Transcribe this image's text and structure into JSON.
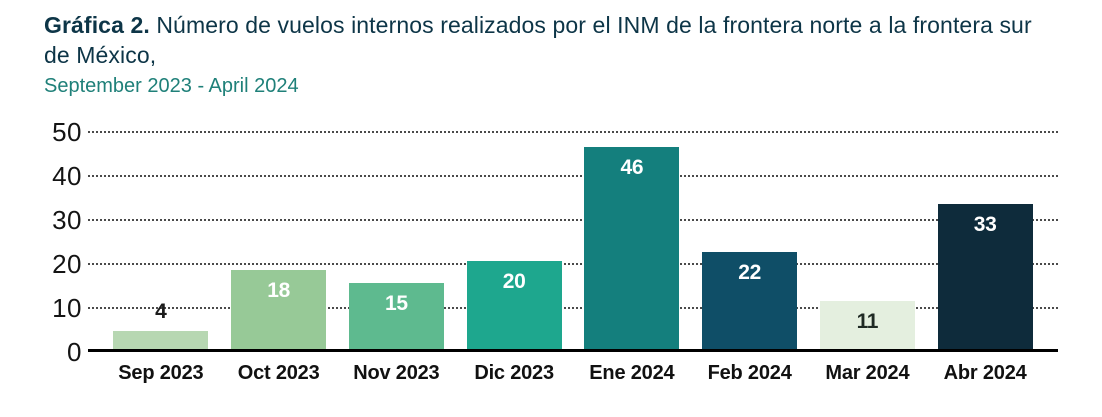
{
  "header": {
    "title_bold": "Gráfica 2.",
    "title_rest": "Número de vuelos internos realizados por el INM de la frontera norte a la frontera sur de México,",
    "subtitle": "September 2023 - April 2024"
  },
  "colors": {
    "title": "#0d3547",
    "subtitle": "#1f8079",
    "grid": "#4a4a4a",
    "tick_label": "#141414",
    "axis_line": "#000000"
  },
  "chart_data": {
    "type": "bar",
    "title": "Gráfica 2. Número de vuelos internos realizados por el INM de la frontera norte a la frontera sur de México,",
    "subtitle": "September 2023 - April 2024",
    "categories": [
      "Sep 2023",
      "Oct 2023",
      "Nov 2023",
      "Dic 2023",
      "Ene 2024",
      "Feb 2024",
      "Mar 2024",
      "Abr 2024"
    ],
    "values": [
      4,
      18,
      15,
      20,
      46,
      22,
      11,
      33
    ],
    "bar_colors": [
      "#b7d7b2",
      "#97c997",
      "#5eba8f",
      "#1ea78e",
      "#147f7d",
      "#0f4e67",
      "#e4efdf",
      "#0e2b3b"
    ],
    "value_label_colors": [
      "#1c1c1c",
      "#ffffff",
      "#ffffff",
      "#ffffff",
      "#ffffff",
      "#ffffff",
      "#1f2a24",
      "#ffffff"
    ],
    "value_label_inside": [
      false,
      true,
      true,
      true,
      true,
      true,
      true,
      true
    ],
    "xlabel": "",
    "ylabel": "",
    "ylim": [
      0,
      50
    ],
    "yticks": [
      0,
      10,
      20,
      30,
      40,
      50
    ],
    "grid": "horizontal-dotted",
    "legend": "none"
  }
}
